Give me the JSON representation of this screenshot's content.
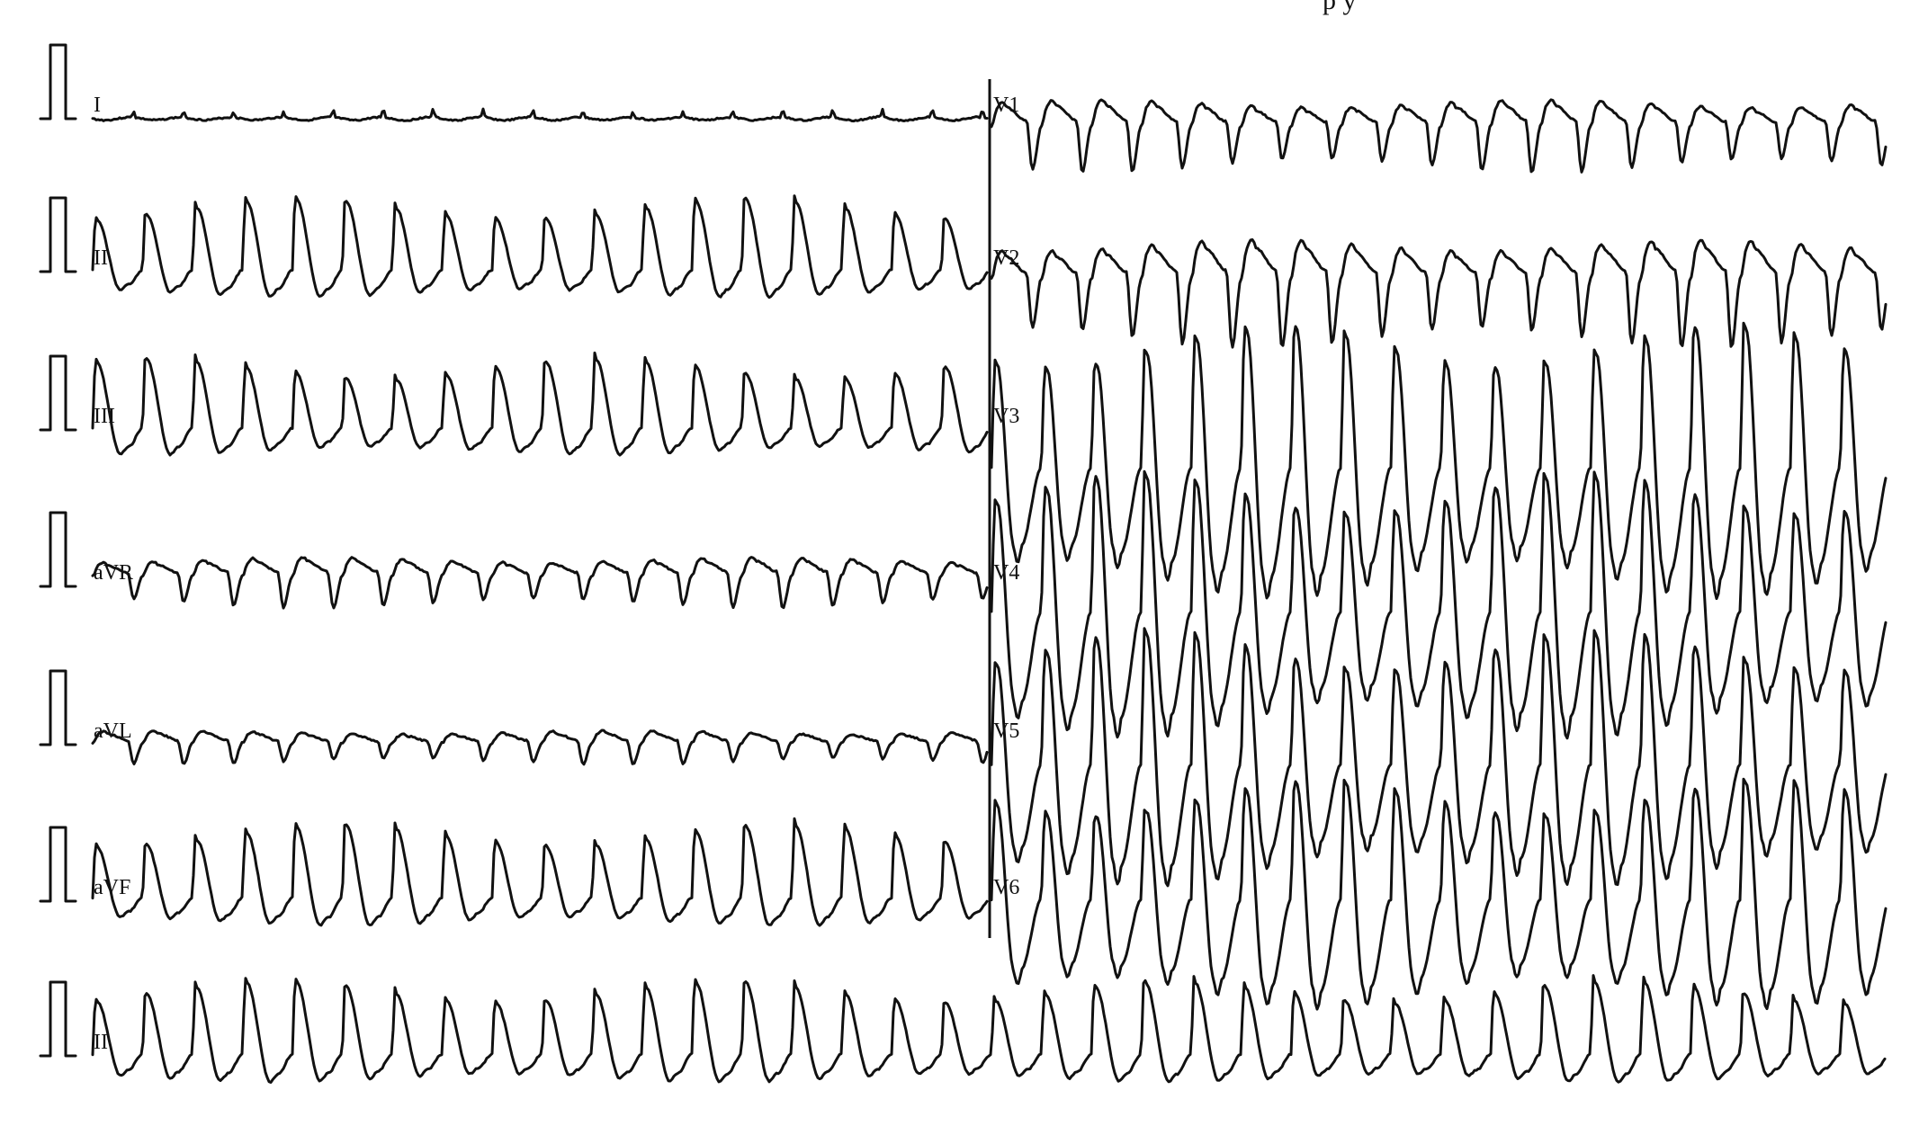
{
  "header": {
    "fragment_text": "p                        y"
  },
  "leads": {
    "I": "I",
    "II": "II",
    "III": "III",
    "aVR": "aVR",
    "aVL": "aVL",
    "aVF": "aVF",
    "V1": "V1",
    "V2": "V2",
    "V3": "V3",
    "V4": "V4",
    "V5": "V5",
    "V6": "V6",
    "rhythm": "II"
  },
  "colors": {
    "trace": "#111111",
    "background": "#ffffff"
  }
}
